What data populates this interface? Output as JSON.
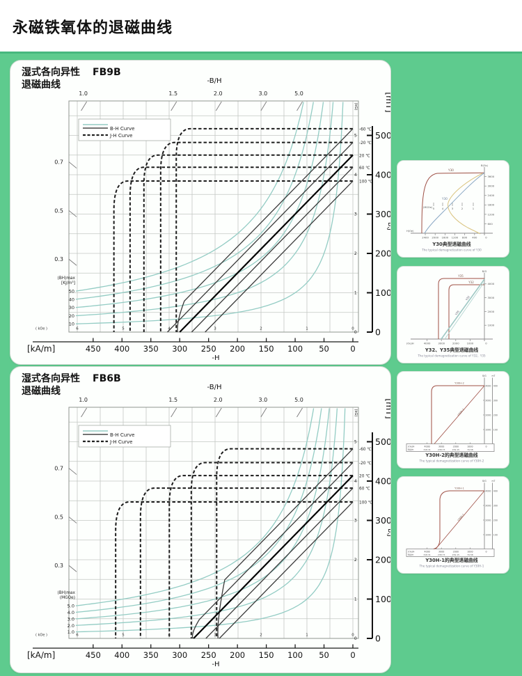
{
  "page": {
    "title": "永磁铁氧体的退磁曲线"
  },
  "chart_data": [
    {
      "type": "line",
      "id": "fb9b",
      "title_line1": "湿式各向异性",
      "grade": "FB9B",
      "title_line2": "退磁曲线",
      "legend": [
        {
          "label": "B-H Curve"
        },
        {
          "label": "J-H Curve"
        }
      ],
      "top_axis": {
        "label": "-B/H",
        "ticks": [
          1.0,
          1.5,
          2.0,
          3.0,
          5.0
        ],
        "left_ticks": [
          0.7,
          0.5,
          0.3
        ]
      },
      "right_axis_kG": {
        "label": "(kG)",
        "ticks": [
          5,
          4,
          3,
          2,
          1,
          0
        ]
      },
      "far_right_axis_mT": {
        "label": "[mT]",
        "unit_label": "B,J",
        "ticks": [
          500,
          400,
          300,
          200,
          100,
          0
        ]
      },
      "bottom_axis_kOe": {
        "label": "( kOe )",
        "ticks": [
          6,
          5,
          4,
          3,
          2,
          1,
          0
        ]
      },
      "bottom_axis_kAm": {
        "label": "[kA/m]",
        "neg_label": "-H",
        "ticks": [
          450,
          400,
          350,
          300,
          250,
          200,
          150,
          100,
          50,
          0
        ]
      },
      "bhmax_curves": {
        "header": "(BH)max",
        "unit": "[KJ/m³]",
        "items": [
          {
            "label": "50",
            "bh_product_mT_kAm": 50000
          },
          {
            "label": "40",
            "bh_product_mT_kAm": 40000
          },
          {
            "label": "30",
            "bh_product_mT_kAm": 30000
          },
          {
            "label": "20",
            "bh_product_mT_kAm": 20000
          },
          {
            "label": "10",
            "bh_product_mT_kAm": 10000
          }
        ]
      },
      "temp_curves": [
        {
          "label": "-60 ℃",
          "temp_c": -60,
          "br_mT": 517,
          "hcj_kAm": 306
        },
        {
          "label": "-20 ℃",
          "temp_c": -20,
          "br_mT": 482,
          "hcj_kAm": 333
        },
        {
          "label": "20 ℃",
          "temp_c": 20,
          "br_mT": 450,
          "hcj_kAm": 362
        },
        {
          "label": "60 ℃",
          "temp_c": 60,
          "br_mT": 419,
          "hcj_kAm": 386
        },
        {
          "label": "100 ℃",
          "temp_c": 100,
          "br_mT": 384,
          "hcj_kAm": 414
        }
      ],
      "recoil_slope_mT_per_kAm": 1.5
    },
    {
      "type": "line",
      "id": "fb6b",
      "title_line1": "湿式各向异性",
      "grade": "FB6B",
      "title_line2": "退磁曲线",
      "legend": [
        {
          "label": "B-H Curve"
        },
        {
          "label": "J-H Curve"
        }
      ],
      "top_axis": {
        "label": "-B/H",
        "ticks": [
          1.0,
          1.5,
          2.0,
          3.0,
          5.0
        ],
        "left_ticks": [
          0.7,
          0.5,
          0.3
        ]
      },
      "right_axis_kG": {
        "label": "(kG)",
        "ticks": [
          5,
          4,
          3,
          2,
          1,
          0
        ]
      },
      "far_right_axis_mT": {
        "label": "[mT]",
        "unit_label": "B,J",
        "ticks": [
          500,
          400,
          300,
          200,
          100,
          0
        ]
      },
      "bottom_axis_kOe": {
        "label": "( kOe )",
        "ticks": [
          6,
          5,
          4,
          3,
          2,
          1,
          0
        ]
      },
      "bottom_axis_kAm": {
        "label": "[kA/m]",
        "neg_label": "-H",
        "ticks": [
          450,
          400,
          350,
          300,
          250,
          200,
          150,
          100,
          50,
          0
        ]
      },
      "bhmax_curves": {
        "header": "(BH)max",
        "unit": "(MGOe)",
        "items": [
          {
            "label": "5.0",
            "bh_product_mT_kAm": 39800
          },
          {
            "label": "4.0",
            "bh_product_mT_kAm": 31840
          },
          {
            "label": "3.0",
            "bh_product_mT_kAm": 23880
          },
          {
            "label": "2.0",
            "bh_product_mT_kAm": 15920
          },
          {
            "label": "1.0",
            "bh_product_mT_kAm": 7960
          }
        ]
      },
      "temp_curves": [
        {
          "label": "-60 ℃",
          "temp_c": -60,
          "br_mT": 482,
          "hcj_kAm": 236
        },
        {
          "label": "-20 ℃",
          "temp_c": -20,
          "br_mT": 447,
          "hcj_kAm": 280
        },
        {
          "label": "20 ℃",
          "temp_c": 20,
          "br_mT": 414,
          "hcj_kAm": 318
        },
        {
          "label": "60 ℃",
          "temp_c": 60,
          "br_mT": 382,
          "hcj_kAm": 368
        },
        {
          "label": "100 ℃",
          "temp_c": 100,
          "br_mT": 347,
          "hcj_kAm": 411
        }
      ],
      "recoil_slope_mT_per_kAm": 1.5
    },
    {
      "type": "line",
      "variant": "y30",
      "corner_label": "B(Gs)",
      "y_ticks_Gs": [
        3600,
        3000,
        2400,
        1800,
        1200,
        600
      ],
      "x_ticks_Oe": [
        2400,
        2000,
        1600,
        1200,
        800,
        400
      ],
      "x_zero": "0",
      "h_axis_label": "H(Oe)",
      "mid_scale_label": "(MGOe)",
      "mid_scale_ticks": [
        5,
        4,
        3,
        2,
        1
      ],
      "curve_top_label": "Y30",
      "curve_diag_label": "Y30",
      "title": "Y30典型退磁曲线",
      "subtitle": "The typical demagnetization curve of Y30"
    },
    {
      "type": "line",
      "variant": "y3235",
      "corner_label": "B/G",
      "y_ticks_G": [
        4000,
        3000,
        2000,
        1000
      ],
      "x_ticks_Oe": [
        4000,
        3000,
        2000,
        1000
      ],
      "x_zero": "0",
      "h_axis_label": "(Oe)H",
      "loop_labels": [
        "Y35",
        "Y32"
      ],
      "diag_labels": [
        "Y32",
        "Y35"
      ],
      "title": "Y32、Y35典型退磁曲线",
      "subtitle": "The typical demagnetization curve of Y32、Y35"
    },
    {
      "type": "line",
      "variant": "yh",
      "corner_label_1": "B/G",
      "corner_label_2": "mT",
      "y_ticks_G": [
        4000,
        3000,
        2000,
        1000
      ],
      "y_ticks_mT": [
        400,
        300,
        200,
        100
      ],
      "x_row_Oe": [
        4000,
        3000,
        2000,
        1000
      ],
      "x_row_kAm": [
        "318.31",
        "238.73",
        "159.15",
        "79.58"
      ],
      "x_zero": "0",
      "h_axis_label": "(Oe)H",
      "kam_row_label": "KA/m",
      "curve_label": "Y30H-2",
      "title": "Y30H-2的典型退磁曲线",
      "subtitle": "The typical demagnetization curve of Y30H-2"
    },
    {
      "type": "line",
      "variant": "yh",
      "corner_label_1": "B/G",
      "corner_label_2": "mT",
      "y_ticks_G": [
        4000,
        3000,
        2000,
        1000
      ],
      "y_ticks_mT": [
        400,
        300,
        200,
        100
      ],
      "x_row_Oe": [
        4000,
        3000,
        2000,
        1000
      ],
      "x_row_kAm": [
        "318.31",
        "238.73",
        "159.15",
        "79.58"
      ],
      "x_zero": "0",
      "h_axis_label": "(Oe)H",
      "kam_row_label": "KA/m",
      "curve_label": "Y30H-1",
      "title": "Y30H-1的典型退磁曲线",
      "subtitle": "The typical demagnetization curve of Y30H-1"
    }
  ]
}
